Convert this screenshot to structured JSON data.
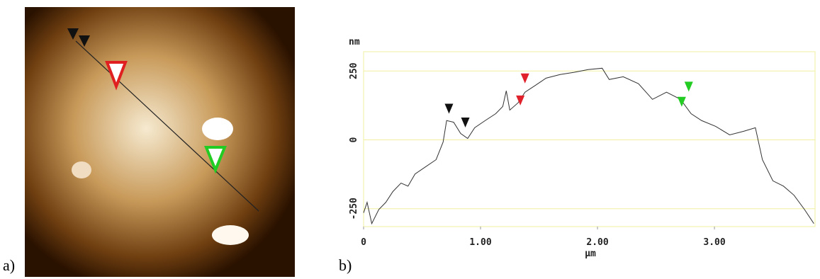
{
  "panel_labels": [
    "a)",
    "b)"
  ],
  "chart_data": {
    "type": "line",
    "y_unit": "nm",
    "x_label": "µm",
    "x": [
      0,
      0.03,
      0.07,
      0.13,
      0.19,
      0.25,
      0.32,
      0.38,
      0.44,
      0.53,
      0.62,
      0.68,
      0.71,
      0.77,
      0.83,
      0.89,
      0.95,
      1.04,
      1.13,
      1.19,
      1.22,
      1.25,
      1.32,
      1.38,
      1.47,
      1.56,
      1.68,
      1.8,
      1.92,
      2.04,
      2.1,
      2.22,
      2.35,
      2.47,
      2.59,
      2.71,
      2.8,
      2.89,
      3.01,
      3.13,
      3.25,
      3.35,
      3.41,
      3.5,
      3.59,
      3.68,
      3.77,
      3.85
    ],
    "series": [
      {
        "color": "#333333",
        "values": [
          -265,
          -227,
          -304,
          -253,
          -227,
          -188,
          -157,
          -168,
          -124,
          -98,
          -72,
          -8,
          70,
          64,
          23,
          5,
          44,
          70,
          95,
          121,
          178,
          108,
          134,
          173,
          198,
          224,
          237,
          245,
          255,
          260,
          219,
          229,
          204,
          147,
          173,
          147,
          95,
          70,
          49,
          18,
          31,
          44,
          -72,
          -149,
          -168,
          -201,
          -253,
          -304
        ]
      }
    ],
    "markers": [
      {
        "x": 0.73,
        "y": 95,
        "color": "#111111"
      },
      {
        "x": 0.87,
        "y": 45,
        "color": "#111111"
      },
      {
        "x": 1.34,
        "y": 125,
        "color": "#e0202a"
      },
      {
        "x": 1.38,
        "y": 205,
        "color": "#e0202a"
      },
      {
        "x": 2.72,
        "y": 120,
        "color": "#22cc22"
      },
      {
        "x": 2.78,
        "y": 175,
        "color": "#22cc22"
      }
    ],
    "xlim": [
      0,
      3.86
    ],
    "ylim": [
      -315,
      320
    ],
    "xticks": [
      0,
      {
        "value": 1,
        "label": "1.00"
      },
      {
        "value": 2,
        "label": "2.00"
      },
      {
        "value": 3,
        "label": "3.00"
      }
    ],
    "yticks": [
      -250,
      0,
      250
    ],
    "grid_color": "#f0f0a0"
  }
}
